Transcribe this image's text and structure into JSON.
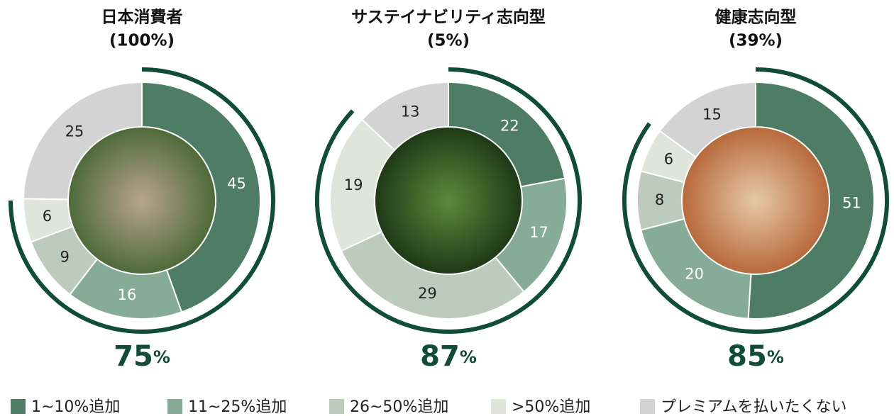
{
  "chart_data": [
    {
      "type": "donut",
      "title": "日本消費者",
      "subtitle": "(100%)",
      "values": [
        45,
        16,
        9,
        6,
        25
      ],
      "premium": 75,
      "premium_label": "75%"
    },
    {
      "type": "donut",
      "title": "サステイナビリティ志向型",
      "subtitle": "(5%)",
      "values": [
        22,
        17,
        29,
        19,
        13
      ],
      "premium": 87,
      "premium_label": "87%"
    },
    {
      "type": "donut",
      "title": "健康志向型",
      "subtitle": "(39%)",
      "values": [
        51,
        20,
        8,
        6,
        15
      ],
      "premium": 85,
      "premium_label": "85%"
    }
  ],
  "legend": {
    "labels": [
      "1~10%追加",
      "11~25%追加",
      "26~50%追加",
      ">50%追加",
      "プレミアムを払いたくない"
    ],
    "colors": [
      "#4e7c64",
      "#86ab97",
      "#bccbbb",
      "#dfe5da",
      "#d3d3d3"
    ]
  },
  "arc_color": "#0f4d3a"
}
